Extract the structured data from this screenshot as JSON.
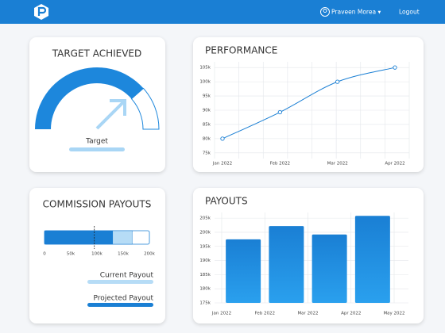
{
  "header": {
    "user": "Praveen Morea ▾",
    "logout": "Logout"
  },
  "chart_data": [
    {
      "type": "gauge",
      "title": "TARGET ACHIEVED",
      "value": 77,
      "ylim": [
        0,
        100
      ],
      "label": "Target",
      "color": "#1d87dc"
    },
    {
      "type": "line",
      "title": "PERFORMANCE",
      "categories": [
        "Jan 2022",
        "Feb 2022",
        "Mar 2022",
        "Apr 2022"
      ],
      "values": [
        80000,
        89300,
        100000,
        105000
      ],
      "color": "#1a7fd4",
      "grid": true,
      "ylim": [
        73000,
        107000
      ],
      "yticks": [
        {
          "value": 75000,
          "label": "75k"
        },
        {
          "value": 80000,
          "label": "80k"
        },
        {
          "value": 85000,
          "label": "85k"
        },
        {
          "value": 90000,
          "label": "90k"
        },
        {
          "value": 95000,
          "label": "95k"
        },
        {
          "value": 100000,
          "label": "100k"
        },
        {
          "value": 105000,
          "label": "105k"
        }
      ]
    },
    {
      "type": "stacked_hbar",
      "title": "COMMISSION PAYOUTS",
      "xlim": [
        0,
        200000
      ],
      "marker": 95000,
      "xticks": [
        0,
        {
          "value": 50000,
          "label": "50k"
        },
        {
          "value": 100000,
          "label": "100k"
        },
        {
          "value": 150000,
          "label": "150k"
        },
        {
          "value": 200000,
          "label": "200k"
        }
      ],
      "series": [
        {
          "name": "Projected Payout",
          "color": "#1a7fd4",
          "values": [
            130000
          ]
        },
        {
          "name": "Current Payout",
          "color": "#b6dcf6",
          "values": [
            37000
          ]
        }
      ],
      "legend_order": [
        1,
        0
      ]
    },
    {
      "type": "bar",
      "title": "PAYOUTS",
      "x_labels": [
        "Jan 2022",
        "Feb 2022",
        "Mar 2022",
        "Apr 2022",
        "May 2022"
      ],
      "values": [
        197500,
        202200,
        199200,
        205800
      ],
      "color": "#1a7fd4",
      "grid": true,
      "ylim": [
        175000,
        207000
      ],
      "yticks": [
        {
          "value": 175000,
          "label": "175k"
        },
        {
          "value": 180000,
          "label": "180k"
        },
        {
          "value": 185000,
          "label": "185k"
        },
        {
          "value": 190000,
          "label": "190k"
        },
        {
          "value": 195000,
          "label": "195k"
        },
        {
          "value": 200000,
          "label": "200k"
        },
        {
          "value": 205000,
          "label": "205k"
        }
      ]
    }
  ]
}
